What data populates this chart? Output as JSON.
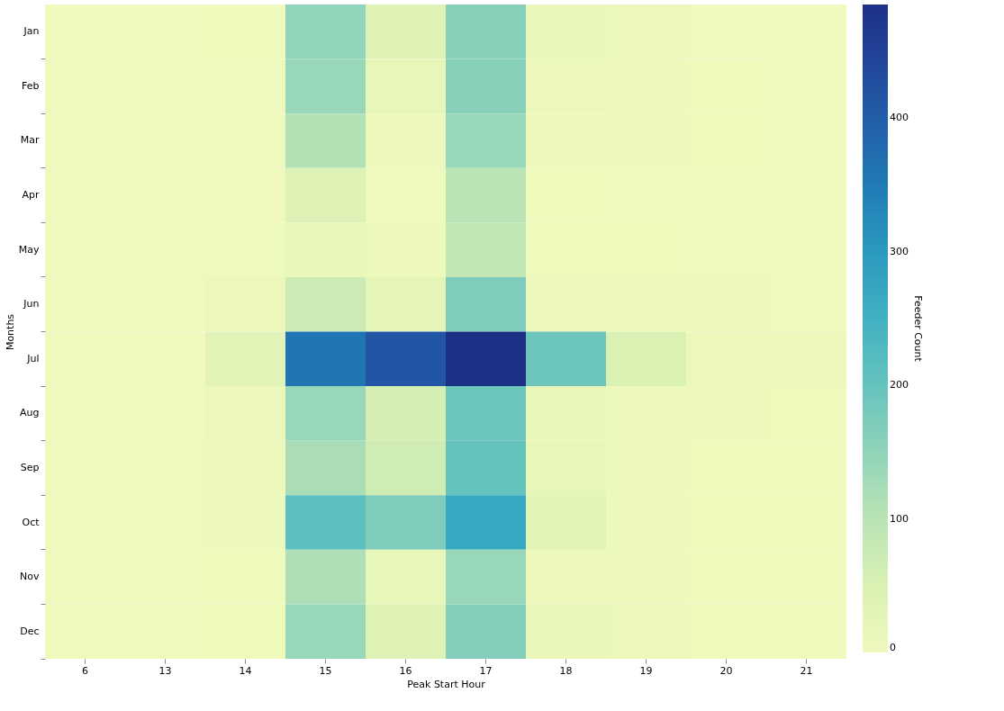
{
  "chart_data": {
    "type": "heatmap",
    "xlabel": "Peak Start Hour",
    "ylabel": "Months",
    "clabel": "Feeder Count",
    "categories": [
      "6",
      "13",
      "14",
      "15",
      "16",
      "17",
      "18",
      "19",
      "20",
      "21"
    ],
    "y_categories": [
      "Jan",
      "Feb",
      "Mar",
      "Apr",
      "May",
      "Jun",
      "Jul",
      "Aug",
      "Sep",
      "Oct",
      "Nov",
      "Dec"
    ],
    "cells": [
      [
        0,
        0,
        3,
        150,
        40,
        160,
        15,
        8,
        2,
        1
      ],
      [
        0,
        0,
        1,
        140,
        20,
        160,
        10,
        8,
        3,
        2
      ],
      [
        0,
        0,
        1,
        110,
        8,
        140,
        5,
        5,
        3,
        2
      ],
      [
        0,
        0,
        1,
        40,
        2,
        100,
        3,
        2,
        2,
        2
      ],
      [
        0,
        0,
        2,
        15,
        8,
        90,
        3,
        3,
        2,
        2
      ],
      [
        0,
        0,
        10,
        75,
        25,
        170,
        8,
        6,
        4,
        2
      ],
      [
        0,
        0,
        35,
        360,
        410,
        485,
        190,
        50,
        10,
        5
      ],
      [
        0,
        0,
        10,
        140,
        60,
        190,
        15,
        8,
        4,
        3
      ],
      [
        0,
        0,
        8,
        120,
        70,
        200,
        20,
        5,
        3,
        3
      ],
      [
        0,
        0,
        8,
        210,
        170,
        270,
        35,
        5,
        3,
        3
      ],
      [
        0,
        0,
        3,
        115,
        20,
        140,
        5,
        5,
        3,
        3
      ],
      [
        0,
        0,
        3,
        140,
        40,
        165,
        15,
        10,
        3,
        3
      ]
    ],
    "clim": [
      0,
      485
    ],
    "cticks": [
      0,
      100,
      200,
      300,
      400
    ]
  }
}
